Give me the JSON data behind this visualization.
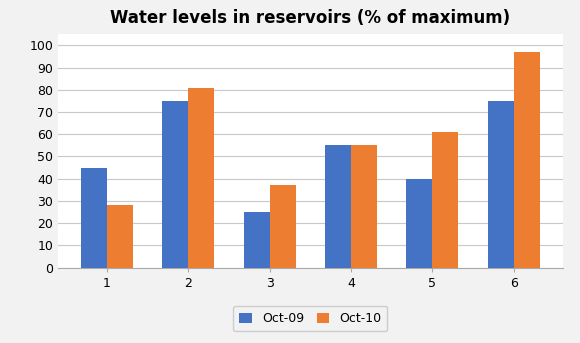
{
  "title": "Water levels in reservoirs (% of maximum)",
  "categories": [
    "1",
    "2",
    "3",
    "4",
    "5",
    "6"
  ],
  "oct09": [
    45,
    75,
    25,
    55,
    40,
    75
  ],
  "oct10": [
    28,
    81,
    37,
    55,
    61,
    97
  ],
  "bar_color_09": "#4472C4",
  "bar_color_10": "#ED7D31",
  "legend_labels": [
    "Oct-09",
    "Oct-10"
  ],
  "ylim": [
    0,
    105
  ],
  "yticks": [
    0,
    10,
    20,
    30,
    40,
    50,
    60,
    70,
    80,
    90,
    100
  ],
  "title_fontsize": 12,
  "tick_fontsize": 9,
  "legend_fontsize": 9,
  "bar_width": 0.32,
  "background_color": "#ffffff",
  "outer_bg": "#f2f2f2",
  "grid_color": "#c8c8c8"
}
